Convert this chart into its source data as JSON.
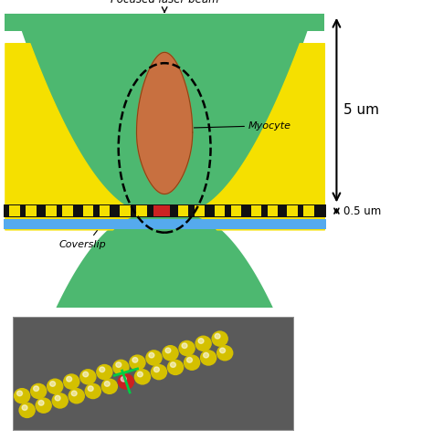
{
  "bg_color": "#ffffff",
  "green_outer": "#4db870",
  "green_light": "#6dc880",
  "yellow_color": "#f5e000",
  "brown_color": "#c87040",
  "red_color": "#cc2222",
  "black_color": "#111111",
  "blue_color": "#55aaee",
  "title_text": "Focused laser beam",
  "myocyte_label": "Myocyte",
  "coverslip_label": "Coverslip",
  "dim1_label": "5 um",
  "dim2_label": "0.5 um",
  "bead_yellow": "#d4c000",
  "bead_red": "#cc2020"
}
